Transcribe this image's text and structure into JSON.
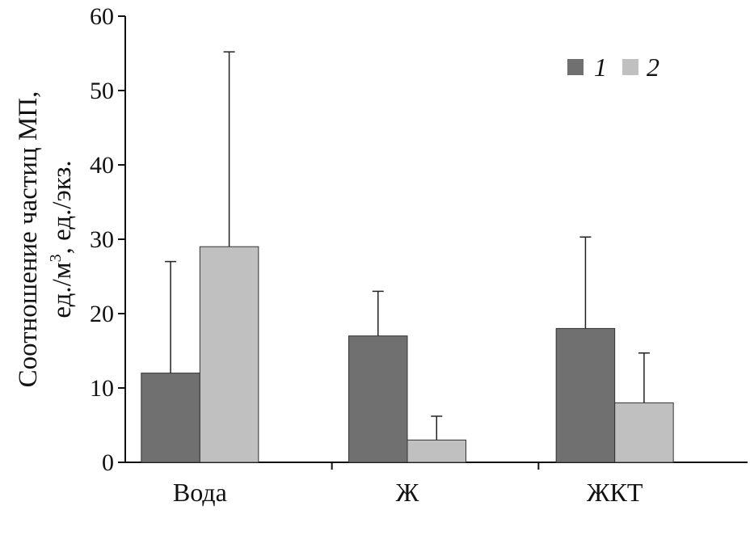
{
  "chart_data": {
    "type": "bar",
    "categories": [
      "Вода",
      "Ж",
      "ЖКТ"
    ],
    "series": [
      {
        "name": "1",
        "color": "#707070",
        "values": [
          12,
          17,
          18
        ],
        "error_upper": [
          27,
          23,
          30.3
        ]
      },
      {
        "name": "2",
        "color": "#c0c0c0",
        "values": [
          29,
          3,
          8
        ],
        "error_upper": [
          55.2,
          6.2,
          14.7
        ]
      }
    ],
    "ylabel_line1": "Соотношение частиц МП,",
    "ylabel_line2_pre": "ед./м",
    "ylabel_line2_sup": "3",
    "ylabel_line2_post": ", ед./экз.",
    "xlabel": "",
    "ylim": [
      0,
      60
    ],
    "yticks": [
      "0",
      "10",
      "20",
      "30",
      "40",
      "50",
      "60"
    ],
    "grid": false,
    "legend_position": "top-right"
  }
}
